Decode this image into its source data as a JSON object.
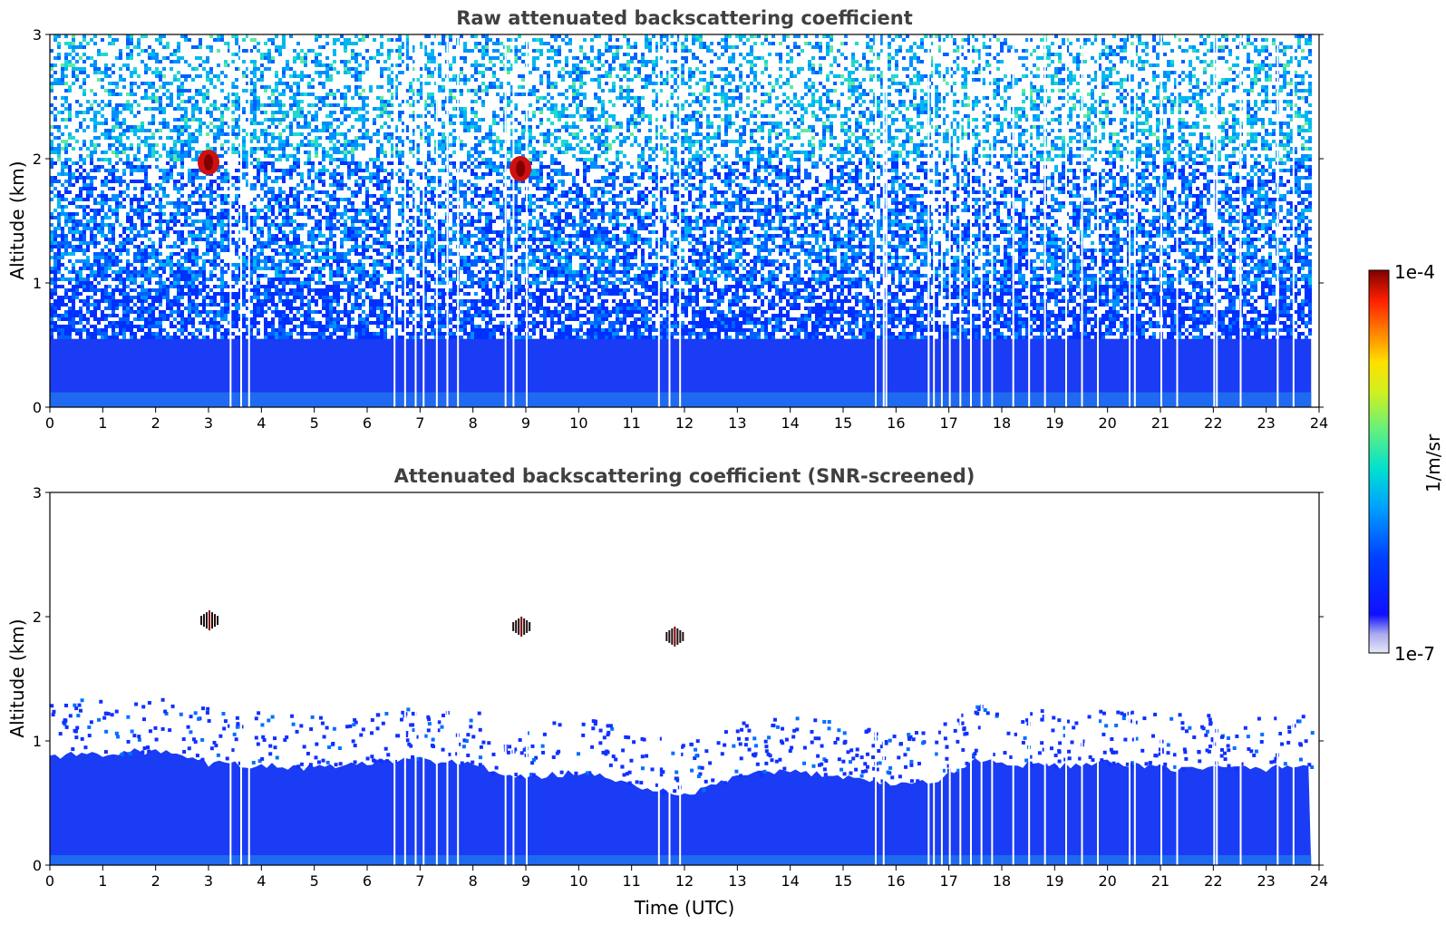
{
  "chart_data": [
    {
      "type": "heatmap",
      "title": "Raw attenuated backscattering coefficient",
      "xlabel": "",
      "ylabel": "Altitude (km)",
      "xlim": [
        0,
        24
      ],
      "ylim": [
        0,
        3
      ],
      "xticks": [
        "0",
        "1",
        "2",
        "3",
        "4",
        "5",
        "6",
        "7",
        "8",
        "9",
        "10",
        "11",
        "12",
        "13",
        "14",
        "15",
        "16",
        "17",
        "18",
        "19",
        "20",
        "21",
        "22",
        "23",
        "24"
      ],
      "yticks": [
        "0",
        "1",
        "2",
        "3"
      ],
      "screened": false,
      "features": [
        {
          "time": 3.0,
          "altitude_km": 1.97,
          "description": "high backscatter (~1e-4)"
        },
        {
          "time": 8.9,
          "altitude_km": 1.92,
          "description": "high backscatter (~1e-4)"
        }
      ]
    },
    {
      "type": "heatmap",
      "title": "Attenuated backscattering coefficient (SNR-screened)",
      "xlabel": "Time (UTC)",
      "ylabel": "Altitude (km)",
      "xlim": [
        0,
        24
      ],
      "ylim": [
        0,
        3
      ],
      "xticks": [
        "0",
        "1",
        "2",
        "3",
        "4",
        "5",
        "6",
        "7",
        "8",
        "9",
        "10",
        "11",
        "12",
        "13",
        "14",
        "15",
        "16",
        "17",
        "18",
        "19",
        "20",
        "21",
        "22",
        "23",
        "24"
      ],
      "yticks": [
        "0",
        "1",
        "2",
        "3"
      ],
      "screened": true,
      "boundary_layer_top_km": [
        [
          0,
          0.88
        ],
        [
          1,
          0.9
        ],
        [
          2,
          0.92
        ],
        [
          3,
          0.82
        ],
        [
          4,
          0.8
        ],
        [
          5,
          0.78
        ],
        [
          6,
          0.82
        ],
        [
          7,
          0.85
        ],
        [
          8,
          0.82
        ],
        [
          8.5,
          0.72
        ],
        [
          9,
          0.7
        ],
        [
          10,
          0.75
        ],
        [
          11,
          0.65
        ],
        [
          12,
          0.55
        ],
        [
          13,
          0.72
        ],
        [
          14,
          0.75
        ],
        [
          15,
          0.72
        ],
        [
          16,
          0.65
        ],
        [
          16.8,
          0.68
        ],
        [
          17.5,
          0.85
        ],
        [
          18,
          0.82
        ],
        [
          19,
          0.8
        ],
        [
          20,
          0.82
        ],
        [
          21,
          0.78
        ],
        [
          22,
          0.78
        ],
        [
          23,
          0.78
        ],
        [
          23.8,
          0.8
        ]
      ],
      "features": [
        {
          "time": 3.0,
          "altitude_km": 1.97,
          "description": "cloud"
        },
        {
          "time": 8.9,
          "altitude_km": 1.92,
          "description": "cloud"
        },
        {
          "time": 11.8,
          "altitude_km": 1.84,
          "description": "cloud"
        }
      ]
    }
  ],
  "colorbar": {
    "label": "1/m/sr",
    "min_label": "1e-7",
    "max_label": "1e-4",
    "colors": [
      "#e6e6f8",
      "#b8b8ef",
      "#9a9aee",
      "#1010ff",
      "#0040ff",
      "#0080ff",
      "#00c0ff",
      "#00e0d0",
      "#40f090",
      "#a0f040",
      "#f0f000",
      "#ffc000",
      "#ff8000",
      "#ff3000",
      "#e00000",
      "#800000"
    ]
  }
}
